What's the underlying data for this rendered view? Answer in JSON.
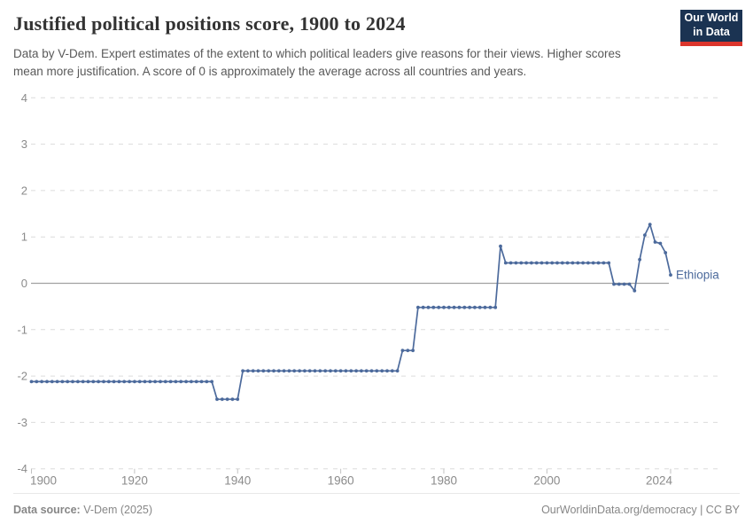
{
  "header": {
    "title": "Justified political positions score, 1900 to 2024",
    "subtitle": "Data by V-Dem. Expert estimates of the extent to which political leaders give reasons for their views. Higher scores mean more justification. A score of 0 is approximately the average across all countries and years.",
    "logo": {
      "line1": "Our World",
      "line2": "in Data"
    }
  },
  "chart_data": {
    "type": "line",
    "title": "Justified political positions score, 1900 to 2024",
    "xlabel": "",
    "ylabel": "",
    "xlim": [
      1900,
      2024
    ],
    "ylim": [
      -4,
      4
    ],
    "x_ticks": [
      1900,
      1920,
      1940,
      1960,
      1980,
      2000,
      2024
    ],
    "y_ticks": [
      4,
      3,
      2,
      1,
      0,
      -1,
      -2,
      -3,
      -4
    ],
    "grid": "horizontal dashed, solid zero line",
    "legend_position": "end-of-line label",
    "series": [
      {
        "name": "Ethiopia",
        "color": "#4c6a9c",
        "segments": [
          {
            "from": 1900,
            "to": 1935,
            "value": -2.12
          },
          {
            "from": 1936,
            "to": 1940,
            "value": -2.5
          },
          {
            "from": 1941,
            "to": 1971,
            "value": -1.89
          },
          {
            "from": 1972,
            "to": 1974,
            "value": -1.45
          },
          {
            "from": 1975,
            "to": 1990,
            "value": -0.52
          },
          {
            "from": 1991,
            "to": 1991,
            "value": 0.8
          },
          {
            "from": 1992,
            "to": 2012,
            "value": 0.44
          },
          {
            "from": 2013,
            "to": 2016,
            "value": -0.02
          },
          {
            "from": 2017,
            "to": 2017,
            "value": -0.16
          },
          {
            "from": 2018,
            "to": 2018,
            "value": 0.51
          },
          {
            "from": 2019,
            "to": 2019,
            "value": 1.04
          },
          {
            "from": 2020,
            "to": 2020,
            "value": 1.27
          },
          {
            "from": 2021,
            "to": 2021,
            "value": 0.89
          },
          {
            "from": 2022,
            "to": 2022,
            "value": 0.86
          },
          {
            "from": 2023,
            "to": 2023,
            "value": 0.66
          },
          {
            "from": 2024,
            "to": 2024,
            "value": 0.18
          }
        ]
      }
    ],
    "colors": {
      "line": "#4c6a9c",
      "grid": "#dcdcdc",
      "zero_line": "#a1a1a1",
      "tick_label": "#8b8b8b",
      "entity_label": "#4c6a9c"
    }
  },
  "footer": {
    "source_label": "Data source:",
    "source_value": " V-Dem (2025)",
    "rights": "OurWorldinData.org/democracy | CC BY"
  }
}
